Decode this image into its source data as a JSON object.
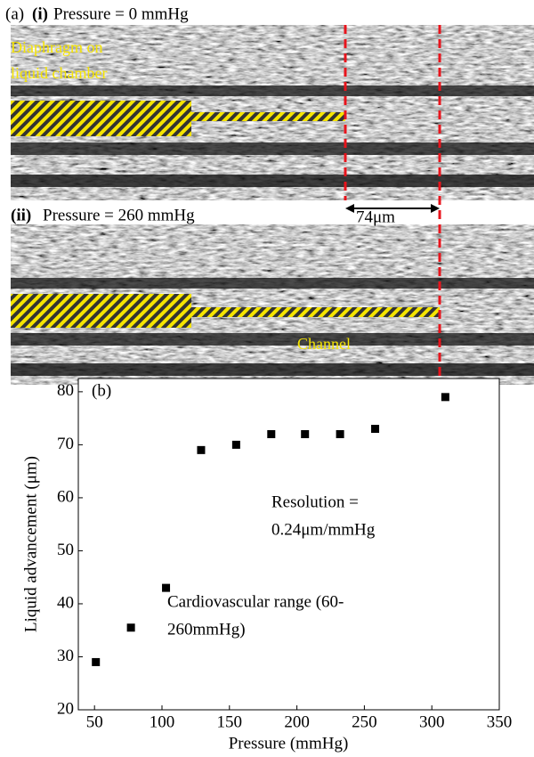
{
  "panel_a": {
    "label": "(a)",
    "top": {
      "label": "(i)",
      "caption": "Pressure = 0 mmHg",
      "note_lines": [
        "Diaphragm on",
        "liquid chamber"
      ]
    },
    "bottom": {
      "label": "(ii)",
      "caption": "Pressure = 260 mmHg",
      "note": "Channel"
    },
    "distance": "74μm"
  },
  "chart_data": {
    "type": "scatter",
    "xlabel": "Pressure (mmHg)",
    "ylabel": "Liquid advancement (μm)",
    "x": [
      51,
      77,
      103,
      129,
      155,
      181,
      206,
      232,
      258,
      310
    ],
    "values": [
      29,
      35.5,
      43,
      69,
      70,
      72,
      72,
      72,
      73,
      79
    ],
    "color": "#000000",
    "xlim": [
      38,
      350
    ],
    "ylim": [
      20,
      82.5
    ],
    "xticks": [
      50,
      100,
      150,
      200,
      250,
      300,
      350
    ],
    "yticks": [
      20,
      30,
      40,
      50,
      60,
      70,
      80
    ],
    "annotations": [
      "(b)",
      "Resolution =",
      "0.24μm/mmHg",
      "Cardiovascular range (60-",
      "260mmHg)"
    ]
  }
}
